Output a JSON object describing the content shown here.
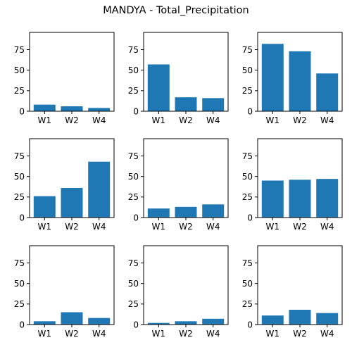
{
  "figure": {
    "title": "MANDYA - Total_Precipitation"
  },
  "chart_data": [
    {
      "type": "bar",
      "categories": [
        "W1",
        "W2",
        "W4"
      ],
      "values": [
        8,
        6,
        4
      ],
      "ylim": [
        0,
        96
      ],
      "yticks": [
        0,
        25,
        50,
        75
      ]
    },
    {
      "type": "bar",
      "categories": [
        "W1",
        "W2",
        "W4"
      ],
      "values": [
        57,
        17,
        16
      ],
      "ylim": [
        0,
        96
      ],
      "yticks": [
        0,
        25,
        50,
        75
      ]
    },
    {
      "type": "bar",
      "categories": [
        "W1",
        "W2",
        "W4"
      ],
      "values": [
        82,
        73,
        46
      ],
      "ylim": [
        0,
        96
      ],
      "yticks": [
        0,
        25,
        50,
        75
      ]
    },
    {
      "type": "bar",
      "categories": [
        "W1",
        "W2",
        "W4"
      ],
      "values": [
        26,
        36,
        68
      ],
      "ylim": [
        0,
        96
      ],
      "yticks": [
        0,
        25,
        50,
        75
      ]
    },
    {
      "type": "bar",
      "categories": [
        "W1",
        "W2",
        "W4"
      ],
      "values": [
        11,
        13,
        16
      ],
      "ylim": [
        0,
        96
      ],
      "yticks": [
        0,
        25,
        50,
        75
      ]
    },
    {
      "type": "bar",
      "categories": [
        "W1",
        "W2",
        "W4"
      ],
      "values": [
        45,
        46,
        47
      ],
      "ylim": [
        0,
        96
      ],
      "yticks": [
        0,
        25,
        50,
        75
      ]
    },
    {
      "type": "bar",
      "categories": [
        "W1",
        "W2",
        "W4"
      ],
      "values": [
        4,
        15,
        8
      ],
      "ylim": [
        0,
        96
      ],
      "yticks": [
        0,
        25,
        50,
        75
      ]
    },
    {
      "type": "bar",
      "categories": [
        "W1",
        "W2",
        "W4"
      ],
      "values": [
        2,
        4,
        7
      ],
      "ylim": [
        0,
        96
      ],
      "yticks": [
        0,
        25,
        50,
        75
      ]
    },
    {
      "type": "bar",
      "categories": [
        "W1",
        "W2",
        "W4"
      ],
      "values": [
        11,
        18,
        14
      ],
      "ylim": [
        0,
        96
      ],
      "yticks": [
        0,
        25,
        50,
        75
      ]
    }
  ],
  "colors": {
    "bar": "#1f77b4",
    "axis": "#000000"
  }
}
